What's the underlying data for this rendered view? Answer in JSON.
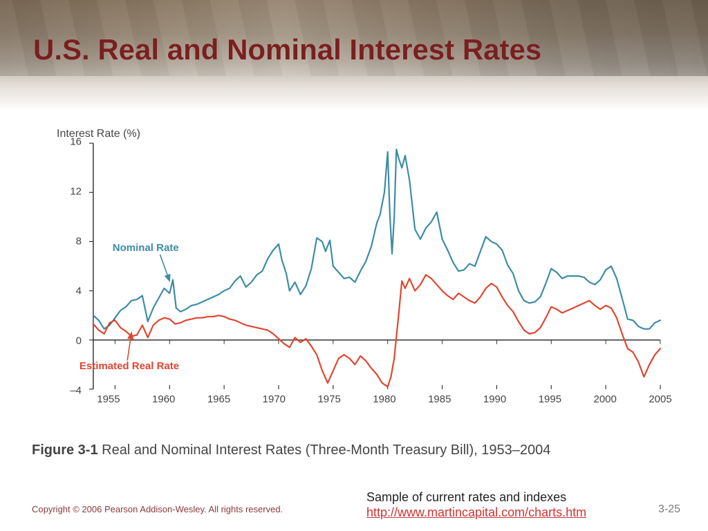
{
  "slide": {
    "title": "U.S. Real and Nominal Interest Rates",
    "figure_caption_num": "Figure 3-1",
    "figure_caption_text": "  Real and Nominal Interest Rates (Three-Month Treasury Bill), 1953–2004",
    "footer_copyright": "Copyright © 2006 Pearson Addison-Wesley. All rights reserved.",
    "footer_sample_label": "Sample of current rates and indexes",
    "footer_link": "http://www.martincapital.com/charts.htm",
    "page_number": "3-25"
  },
  "chart": {
    "type": "line",
    "y_axis_title": "Interest Rate (%)",
    "background_color": "#ffffff",
    "axis_color": "#333333",
    "x_domain": [
      1953,
      2005
    ],
    "y_domain": [
      -4,
      16
    ],
    "y_ticks": [
      -4,
      0,
      4,
      8,
      12,
      16
    ],
    "x_ticks": [
      1955,
      1960,
      1965,
      1970,
      1975,
      1980,
      1985,
      1990,
      1995,
      2000,
      2005
    ],
    "x_tick_len": 6,
    "y_tick_len": 6,
    "tick_fontsize": 15,
    "line_width": 2.2,
    "series": {
      "nominal": {
        "label": "Nominal Rate",
        "color": "#3b8ba5",
        "label_xy": [
          1958.5,
          7.5
        ],
        "arrow_to_xy": [
          1960,
          4.8
        ],
        "data": [
          [
            1953,
            2.0
          ],
          [
            1953.5,
            1.6
          ],
          [
            1954,
            0.9
          ],
          [
            1954.5,
            1.2
          ],
          [
            1955,
            1.8
          ],
          [
            1955.5,
            2.4
          ],
          [
            1956,
            2.7
          ],
          [
            1956.5,
            3.2
          ],
          [
            1957,
            3.3
          ],
          [
            1957.5,
            3.6
          ],
          [
            1958,
            1.5
          ],
          [
            1958.5,
            2.6
          ],
          [
            1959,
            3.4
          ],
          [
            1959.5,
            4.2
          ],
          [
            1960,
            3.8
          ],
          [
            1960.3,
            4.9
          ],
          [
            1960.6,
            2.6
          ],
          [
            1961,
            2.3
          ],
          [
            1961.5,
            2.5
          ],
          [
            1962,
            2.8
          ],
          [
            1962.5,
            2.9
          ],
          [
            1963,
            3.1
          ],
          [
            1963.5,
            3.3
          ],
          [
            1964,
            3.5
          ],
          [
            1964.5,
            3.7
          ],
          [
            1965,
            4.0
          ],
          [
            1965.5,
            4.2
          ],
          [
            1966,
            4.8
          ],
          [
            1966.5,
            5.2
          ],
          [
            1967,
            4.3
          ],
          [
            1967.5,
            4.7
          ],
          [
            1968,
            5.3
          ],
          [
            1968.5,
            5.6
          ],
          [
            1969,
            6.6
          ],
          [
            1969.5,
            7.3
          ],
          [
            1970,
            7.8
          ],
          [
            1970.3,
            6.5
          ],
          [
            1970.7,
            5.4
          ],
          [
            1971,
            4.0
          ],
          [
            1971.5,
            4.7
          ],
          [
            1972,
            3.7
          ],
          [
            1972.5,
            4.4
          ],
          [
            1973,
            5.8
          ],
          [
            1973.5,
            8.3
          ],
          [
            1974,
            8.0
          ],
          [
            1974.3,
            7.2
          ],
          [
            1974.7,
            8.1
          ],
          [
            1975,
            6.0
          ],
          [
            1975.5,
            5.5
          ],
          [
            1976,
            5.0
          ],
          [
            1976.5,
            5.1
          ],
          [
            1977,
            4.7
          ],
          [
            1977.5,
            5.6
          ],
          [
            1978,
            6.4
          ],
          [
            1978.5,
            7.6
          ],
          [
            1979,
            9.5
          ],
          [
            1979.3,
            10.2
          ],
          [
            1979.7,
            12.0
          ],
          [
            1980,
            15.3
          ],
          [
            1980.2,
            10.2
          ],
          [
            1980.4,
            7.0
          ],
          [
            1980.6,
            10.0
          ],
          [
            1980.8,
            15.5
          ],
          [
            1981,
            14.8
          ],
          [
            1981.3,
            14.0
          ],
          [
            1981.6,
            15.0
          ],
          [
            1982,
            13.0
          ],
          [
            1982.5,
            9.0
          ],
          [
            1983,
            8.2
          ],
          [
            1983.5,
            9.1
          ],
          [
            1984,
            9.6
          ],
          [
            1984.5,
            10.4
          ],
          [
            1985,
            8.2
          ],
          [
            1985.5,
            7.3
          ],
          [
            1986,
            6.3
          ],
          [
            1986.5,
            5.6
          ],
          [
            1987,
            5.7
          ],
          [
            1987.5,
            6.2
          ],
          [
            1988,
            6.0
          ],
          [
            1988.5,
            7.2
          ],
          [
            1989,
            8.4
          ],
          [
            1989.5,
            8.0
          ],
          [
            1990,
            7.8
          ],
          [
            1990.5,
            7.3
          ],
          [
            1991,
            6.1
          ],
          [
            1991.5,
            5.4
          ],
          [
            1992,
            4.0
          ],
          [
            1992.5,
            3.2
          ],
          [
            1993,
            3.0
          ],
          [
            1993.5,
            3.1
          ],
          [
            1994,
            3.5
          ],
          [
            1994.5,
            4.6
          ],
          [
            1995,
            5.8
          ],
          [
            1995.5,
            5.5
          ],
          [
            1996,
            5.0
          ],
          [
            1996.5,
            5.2
          ],
          [
            1997,
            5.2
          ],
          [
            1997.5,
            5.2
          ],
          [
            1998,
            5.1
          ],
          [
            1998.5,
            4.7
          ],
          [
            1999,
            4.5
          ],
          [
            1999.5,
            4.9
          ],
          [
            2000,
            5.7
          ],
          [
            2000.5,
            6.0
          ],
          [
            2001,
            5.0
          ],
          [
            2001.5,
            3.4
          ],
          [
            2002,
            1.7
          ],
          [
            2002.5,
            1.6
          ],
          [
            2003,
            1.1
          ],
          [
            2003.5,
            0.9
          ],
          [
            2004,
            0.9
          ],
          [
            2004.5,
            1.4
          ],
          [
            2005,
            1.6
          ]
        ]
      },
      "real": {
        "label": "Estimated Real Rate",
        "color": "#e0452f",
        "label_xy": [
          1955.5,
          -2.0
        ],
        "arrow_to_xy": [
          1956.5,
          0.6
        ],
        "data": [
          [
            1953,
            1.3
          ],
          [
            1953.5,
            0.8
          ],
          [
            1954,
            0.5
          ],
          [
            1954.5,
            1.4
          ],
          [
            1955,
            1.6
          ],
          [
            1955.5,
            1.0
          ],
          [
            1956,
            0.7
          ],
          [
            1956.5,
            0.3
          ],
          [
            1957,
            0.4
          ],
          [
            1957.5,
            1.2
          ],
          [
            1958,
            0.2
          ],
          [
            1958.5,
            1.2
          ],
          [
            1959,
            1.6
          ],
          [
            1959.5,
            1.8
          ],
          [
            1960,
            1.7
          ],
          [
            1960.5,
            1.3
          ],
          [
            1961,
            1.4
          ],
          [
            1961.5,
            1.6
          ],
          [
            1962,
            1.7
          ],
          [
            1962.5,
            1.8
          ],
          [
            1963,
            1.8
          ],
          [
            1963.5,
            1.9
          ],
          [
            1964,
            1.9
          ],
          [
            1964.5,
            2.0
          ],
          [
            1965,
            1.9
          ],
          [
            1965.5,
            1.7
          ],
          [
            1966,
            1.6
          ],
          [
            1966.5,
            1.4
          ],
          [
            1967,
            1.2
          ],
          [
            1967.5,
            1.1
          ],
          [
            1968,
            1.0
          ],
          [
            1968.5,
            0.9
          ],
          [
            1969,
            0.8
          ],
          [
            1969.5,
            0.5
          ],
          [
            1970,
            0.1
          ],
          [
            1970.5,
            -0.3
          ],
          [
            1971,
            -0.6
          ],
          [
            1971.5,
            0.2
          ],
          [
            1972,
            -0.2
          ],
          [
            1972.5,
            0.1
          ],
          [
            1973,
            -0.5
          ],
          [
            1973.5,
            -1.2
          ],
          [
            1974,
            -2.5
          ],
          [
            1974.5,
            -3.5
          ],
          [
            1975,
            -2.5
          ],
          [
            1975.5,
            -1.5
          ],
          [
            1976,
            -1.2
          ],
          [
            1976.5,
            -1.5
          ],
          [
            1977,
            -2.0
          ],
          [
            1977.5,
            -1.3
          ],
          [
            1978,
            -1.7
          ],
          [
            1978.5,
            -2.3
          ],
          [
            1979,
            -2.8
          ],
          [
            1979.5,
            -3.5
          ],
          [
            1980,
            -3.8
          ],
          [
            1980.3,
            -3.0
          ],
          [
            1980.6,
            -1.5
          ],
          [
            1981,
            2.0
          ],
          [
            1981.3,
            4.8
          ],
          [
            1981.6,
            4.2
          ],
          [
            1982,
            5.0
          ],
          [
            1982.5,
            4.0
          ],
          [
            1983,
            4.5
          ],
          [
            1983.5,
            5.3
          ],
          [
            1984,
            5.0
          ],
          [
            1984.5,
            4.5
          ],
          [
            1985,
            4.0
          ],
          [
            1985.5,
            3.6
          ],
          [
            1986,
            3.3
          ],
          [
            1986.5,
            3.8
          ],
          [
            1987,
            3.5
          ],
          [
            1987.5,
            3.2
          ],
          [
            1988,
            3.0
          ],
          [
            1988.5,
            3.5
          ],
          [
            1989,
            4.2
          ],
          [
            1989.5,
            4.6
          ],
          [
            1990,
            4.3
          ],
          [
            1990.5,
            3.5
          ],
          [
            1991,
            2.8
          ],
          [
            1991.5,
            2.3
          ],
          [
            1992,
            1.5
          ],
          [
            1992.5,
            0.8
          ],
          [
            1993,
            0.5
          ],
          [
            1993.5,
            0.6
          ],
          [
            1994,
            1.0
          ],
          [
            1994.5,
            1.8
          ],
          [
            1995,
            2.7
          ],
          [
            1995.5,
            2.5
          ],
          [
            1996,
            2.2
          ],
          [
            1996.5,
            2.4
          ],
          [
            1997,
            2.6
          ],
          [
            1997.5,
            2.8
          ],
          [
            1998,
            3.0
          ],
          [
            1998.5,
            3.2
          ],
          [
            1999,
            2.8
          ],
          [
            1999.5,
            2.5
          ],
          [
            2000,
            2.8
          ],
          [
            2000.5,
            2.6
          ],
          [
            2001,
            1.8
          ],
          [
            2001.5,
            0.5
          ],
          [
            2002,
            -0.7
          ],
          [
            2002.5,
            -1.0
          ],
          [
            2003,
            -1.8
          ],
          [
            2003.5,
            -3.0
          ],
          [
            2004,
            -2.0
          ],
          [
            2004.5,
            -1.2
          ],
          [
            2005,
            -0.7
          ]
        ]
      }
    }
  }
}
